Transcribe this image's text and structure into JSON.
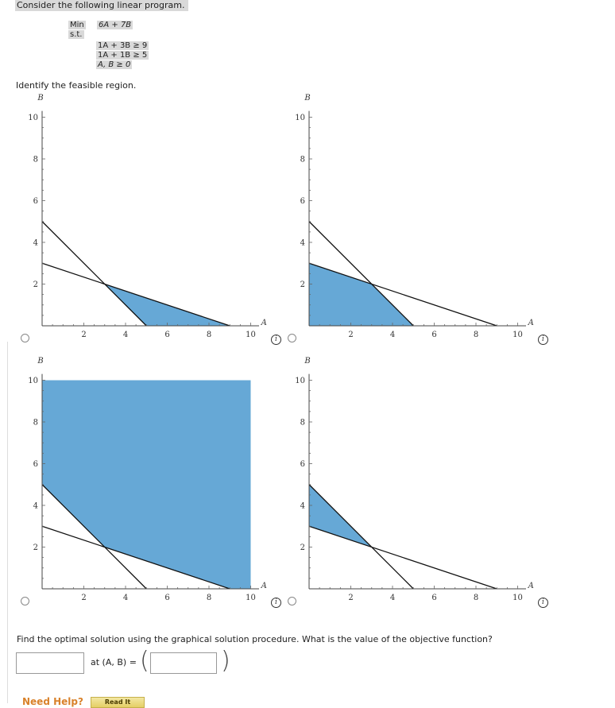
{
  "problem": {
    "intro": "Consider the following linear program.",
    "objective_label": "Min",
    "objective_expr": "6A + 7B",
    "st_label": "s.t.",
    "constraints": [
      "1A + 3B ≥ 9",
      "1A + 1B ≥ 5",
      "A, B ≥ 0"
    ]
  },
  "question1": "Identify the feasible region.",
  "graph_labels": {
    "x_axis": "A",
    "y_axis": "B",
    "x_ticks": [
      "2",
      "4",
      "6",
      "8",
      "10"
    ],
    "y_ticks": [
      "2",
      "4",
      "6",
      "8",
      "10"
    ]
  },
  "options": [
    {
      "id": "option-1",
      "region": [
        [
          3,
          2
        ],
        [
          5,
          0
        ],
        [
          9,
          0
        ]
      ]
    },
    {
      "id": "option-2",
      "region": [
        [
          0,
          3
        ],
        [
          3,
          2
        ],
        [
          5,
          0
        ],
        [
          0,
          0
        ]
      ]
    },
    {
      "id": "option-3",
      "region": [
        [
          0,
          5
        ],
        [
          3,
          2
        ],
        [
          9,
          0
        ],
        [
          10,
          0
        ],
        [
          10,
          10
        ],
        [
          0,
          10
        ]
      ]
    },
    {
      "id": "option-4",
      "region": [
        [
          0,
          5
        ],
        [
          0,
          3
        ],
        [
          3,
          2
        ]
      ]
    }
  ],
  "colors": {
    "region_fill": "#66a8d6",
    "line": "#111111"
  },
  "info_icon": "info-icon",
  "question2": "Find the optimal solution using the graphical solution procedure. What is the value of the objective function?",
  "answer": {
    "objective_value": "",
    "at_label": "at (A, B) =",
    "point_value": ""
  },
  "help": {
    "need_help": "Need Help?",
    "read_it": "Read It"
  }
}
